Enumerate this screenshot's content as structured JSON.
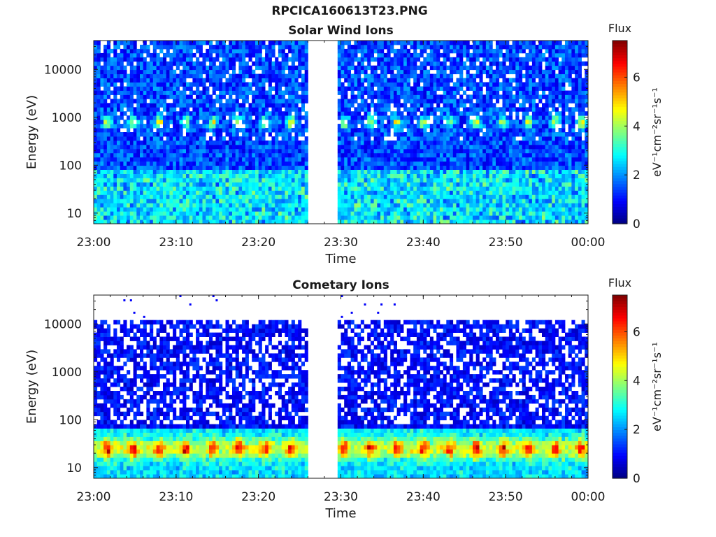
{
  "figure": {
    "title": "RPCICA160613T23.PNG"
  },
  "chart_data": [
    {
      "type": "heatmap",
      "title": "Solar Wind Ions",
      "xlabel": "Time",
      "ylabel": "Energy (eV)",
      "x_ticks": [
        "23:00",
        "23:10",
        "23:20",
        "23:30",
        "23:40",
        "23:50",
        "00:00"
      ],
      "x_range": [
        "23:00",
        "00:00"
      ],
      "y_scale": "log",
      "y_ticks": [
        10,
        100,
        1000,
        10000
      ],
      "y_range": [
        6,
        40000
      ],
      "data_gap": [
        "23:26",
        "23:29:30"
      ],
      "colorbar": {
        "label": "eV⁻¹cm⁻²sr⁻¹s⁻¹",
        "title": "Flux",
        "range": [
          0,
          7.5
        ],
        "ticks": [
          0,
          2,
          4,
          6
        ],
        "colormap": "jet"
      },
      "features": {
        "main_energy_eV": 800,
        "main_flux": 4,
        "period_min": 3.2
      }
    },
    {
      "type": "heatmap",
      "title": "Cometary Ions",
      "xlabel": "Time",
      "ylabel": "Energy (eV)",
      "x_ticks": [
        "23:00",
        "23:10",
        "23:20",
        "23:30",
        "23:40",
        "23:50",
        "00:00"
      ],
      "x_range": [
        "23:00",
        "00:00"
      ],
      "y_scale": "log",
      "y_ticks": [
        10,
        100,
        1000,
        10000
      ],
      "y_range": [
        6,
        40000
      ],
      "data_gap": [
        "23:26",
        "23:29:30"
      ],
      "colorbar": {
        "label": "eV⁻¹cm⁻²sr⁻¹s⁻¹",
        "title": "Flux",
        "range": [
          0,
          7.5
        ],
        "ticks": [
          0,
          2,
          4,
          6
        ],
        "colormap": "jet"
      },
      "features": {
        "main_energy_eV": 25,
        "main_flux": 5,
        "period_min": 3.2
      }
    }
  ]
}
